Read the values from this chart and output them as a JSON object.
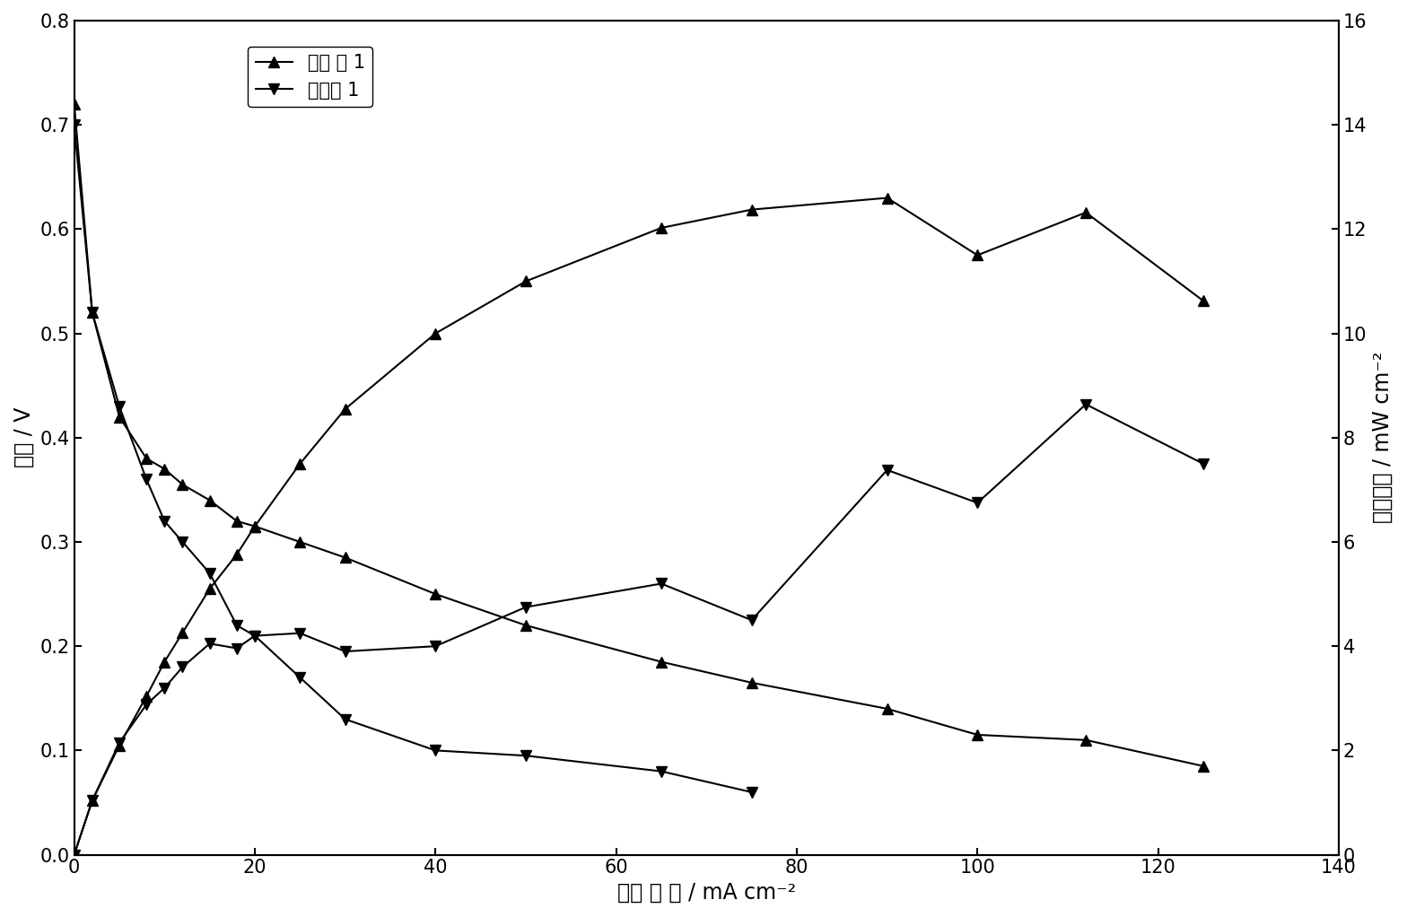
{
  "xlabel": "电流 密 度 / mA cm⁻²",
  "ylabel_left": "电压 / V",
  "ylabel_right": "功率密度 / mW cm⁻²",
  "xlim": [
    0,
    140
  ],
  "ylim_left": [
    0.0,
    0.8
  ],
  "ylim_right": [
    0,
    16
  ],
  "xticks": [
    0,
    20,
    40,
    60,
    80,
    100,
    120,
    140
  ],
  "yticks_left": [
    0.0,
    0.1,
    0.2,
    0.3,
    0.4,
    0.5,
    0.6,
    0.7,
    0.8
  ],
  "yticks_right": [
    0,
    2,
    4,
    6,
    8,
    10,
    12,
    14,
    16
  ],
  "s1_v_x": [
    0,
    2,
    5,
    8,
    10,
    12,
    15,
    18,
    20,
    25,
    30,
    40,
    50,
    65,
    75,
    90,
    100,
    112,
    125
  ],
  "s1_v_y": [
    0.72,
    0.52,
    0.42,
    0.38,
    0.37,
    0.355,
    0.34,
    0.32,
    0.315,
    0.3,
    0.285,
    0.25,
    0.22,
    0.185,
    0.165,
    0.14,
    0.115,
    0.11,
    0.085
  ],
  "s2_v_x": [
    0,
    2,
    5,
    8,
    10,
    12,
    15,
    18,
    20,
    25,
    30,
    40,
    50,
    65,
    75
  ],
  "s2_v_y": [
    0.7,
    0.52,
    0.43,
    0.36,
    0.32,
    0.3,
    0.27,
    0.22,
    0.21,
    0.17,
    0.13,
    0.1,
    0.095,
    0.08,
    0.06
  ],
  "s1_p_x": [
    0,
    2,
    5,
    8,
    10,
    12,
    15,
    18,
    20,
    25,
    30,
    40,
    50,
    65,
    75,
    90,
    100,
    112,
    125
  ],
  "s1_p_y": [
    0.0,
    1.04,
    2.1,
    3.04,
    3.7,
    4.26,
    5.1,
    5.76,
    6.3,
    7.5,
    8.55,
    10.0,
    11.0,
    12.025,
    12.375,
    12.6,
    11.5,
    12.32,
    10.625
  ],
  "s2_p_x": [
    0,
    2,
    5,
    8,
    10,
    12,
    15,
    18,
    20,
    25,
    30,
    40,
    50,
    65,
    75,
    90,
    100,
    112,
    125
  ],
  "s2_p_y": [
    0.0,
    1.04,
    2.15,
    2.88,
    3.2,
    3.6,
    4.05,
    3.96,
    4.2,
    4.25,
    3.9,
    4.0,
    4.75,
    5.2,
    4.5,
    7.38,
    6.75,
    8.64,
    7.5
  ],
  "legend1": "实施 例 1",
  "legend2": "比较例 1",
  "color": "#000000",
  "linewidth": 1.5,
  "markersize": 8,
  "fontsize_label": 17,
  "fontsize_tick": 15,
  "fontsize_legend": 15
}
